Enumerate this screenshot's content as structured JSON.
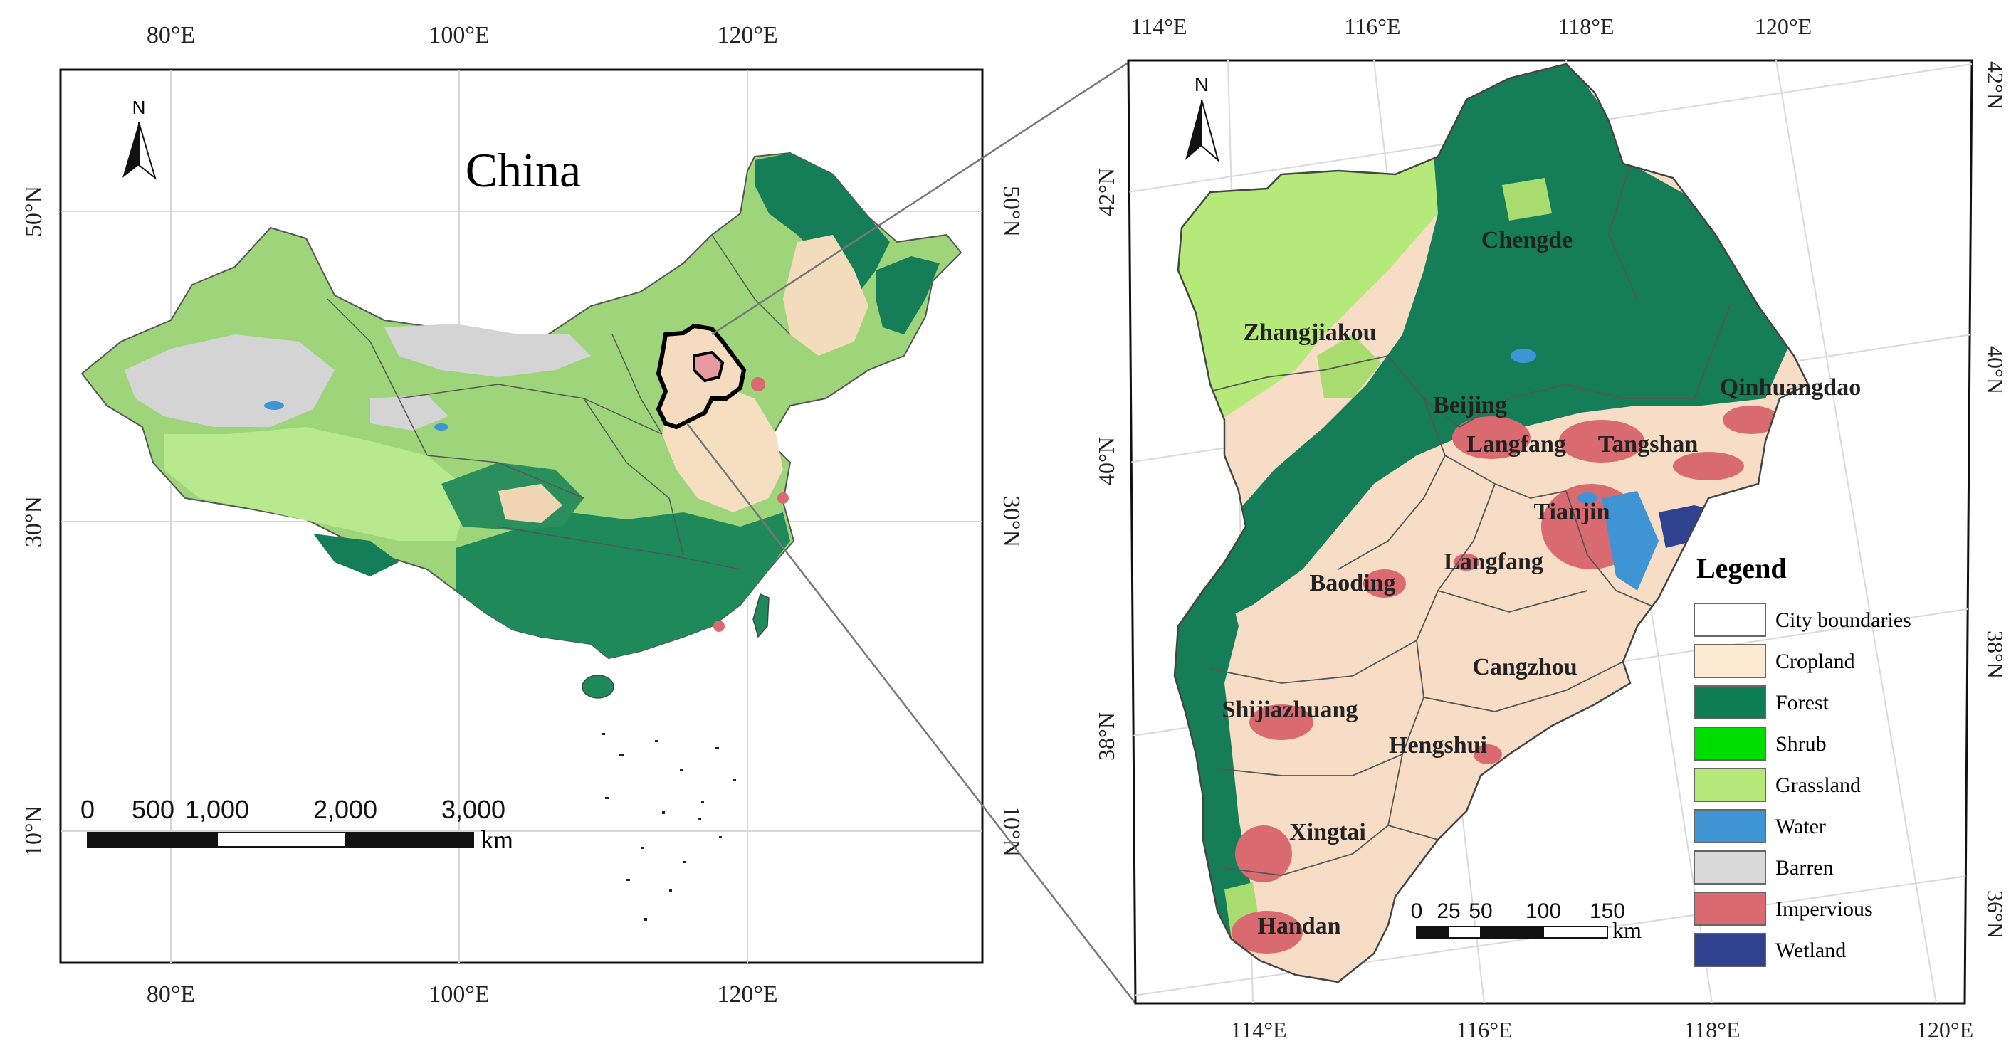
{
  "left_map": {
    "title": "China",
    "north": "N",
    "x_ticks_top": [
      "80°E",
      "100°E",
      "120°E"
    ],
    "x_ticks_bottom": [
      "80°E",
      "100°E",
      "120°E"
    ],
    "y_ticks_left": [
      "50°N",
      "30°N",
      "10°N"
    ],
    "y_ticks_right": [
      "50°N",
      "30°N",
      "10°N"
    ],
    "scale_labels": [
      "0",
      "500",
      "1,000",
      "2,000",
      "3,000"
    ],
    "scale_unit": "km"
  },
  "right_map": {
    "north": "N",
    "x_ticks_top": [
      "114°E",
      "116°E",
      "118°E",
      "120°E"
    ],
    "x_ticks_bottom": [
      "114°E",
      "116°E",
      "118°E",
      "120°E"
    ],
    "y_ticks_left": [
      "42°N",
      "40°N",
      "38°N"
    ],
    "y_ticks_right": [
      "42°N",
      "40°N",
      "38°N",
      "36°N"
    ],
    "cities": [
      "Chengde",
      "Zhangjiakou",
      "Qinhuangdao",
      "Beijing",
      "Langfang",
      "Tangshan",
      "Tianjin",
      "Langfang",
      "Baoding",
      "Cangzhou",
      "Shijiazhuang",
      "Hengshui",
      "Xingtai",
      "Handan"
    ],
    "scale_labels": [
      "0",
      "25",
      "50",
      "100",
      "150"
    ],
    "scale_unit": "km"
  },
  "legend": {
    "title": "Legend",
    "items": [
      {
        "label": "City boundaries",
        "color": "#ffffff"
      },
      {
        "label": "Cropland",
        "color": "#fcebd2"
      },
      {
        "label": "Forest",
        "color": "#0f7d55"
      },
      {
        "label": "Shrub",
        "color": "#00dd00"
      },
      {
        "label": "Grassland",
        "color": "#b5e97a"
      },
      {
        "label": "Water",
        "color": "#3f95d4"
      },
      {
        "label": "Barren",
        "color": "#d9d9d9"
      },
      {
        "label": "Impervious",
        "color": "#d86a70"
      },
      {
        "label": "Wetland",
        "color": "#2e4290"
      }
    ]
  }
}
